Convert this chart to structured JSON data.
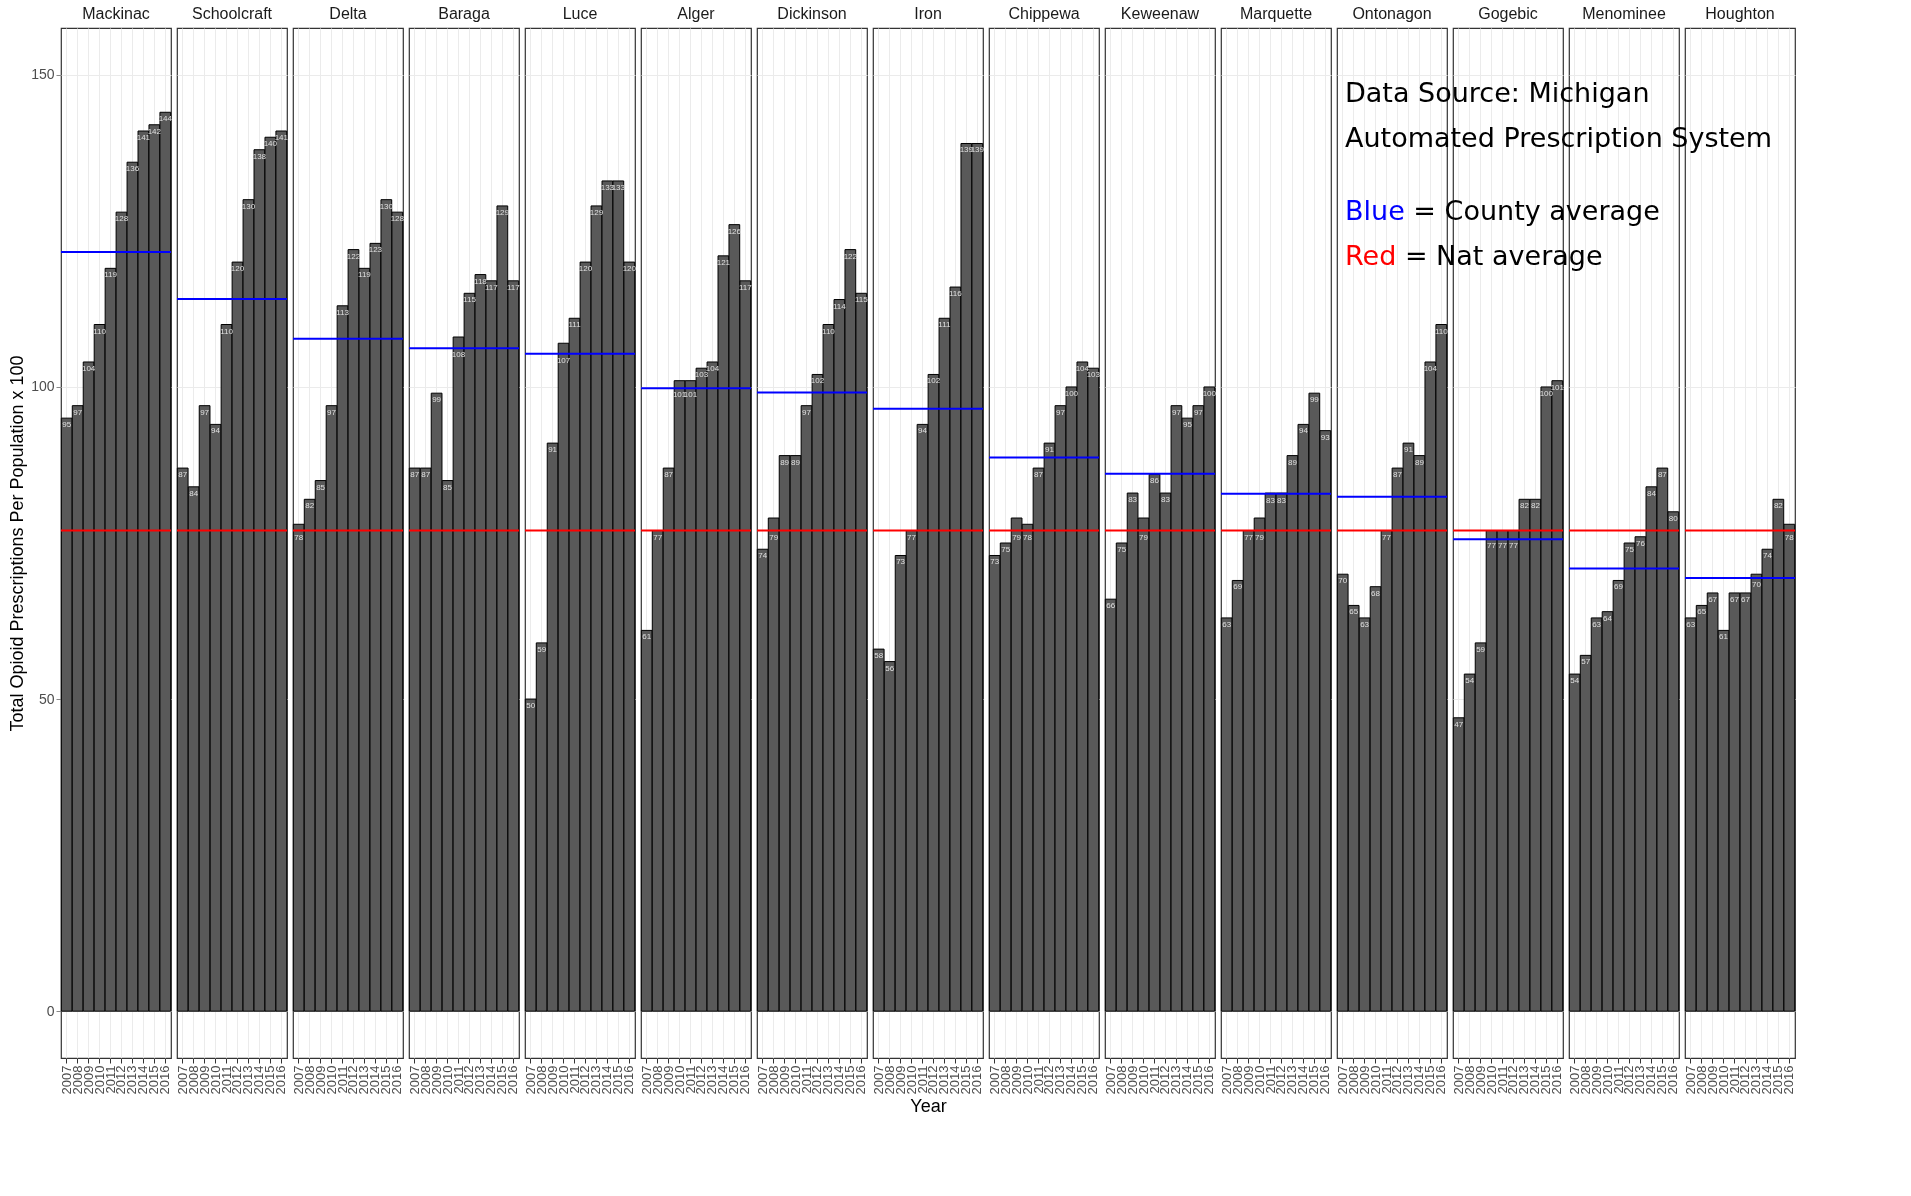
{
  "chart_data": [
    {
      "type": "bar",
      "title": "Mackinac",
      "ylabel": "Total Opioid Prescriptions Per Population x 100",
      "categories": [
        "2007",
        "2008",
        "2009",
        "2010",
        "2011",
        "2012",
        "2013",
        "2014",
        "2015",
        "2016"
      ],
      "values": [
        95,
        97,
        104,
        110,
        119,
        128,
        136,
        141,
        142,
        144
      ],
      "color": "#595959",
      "ylim": [
        -7.5,
        157.5
      ],
      "yticks": [
        0,
        50,
        100,
        150
      ],
      "grid": true,
      "data_labels": true,
      "ref_lines": [
        {
          "axis": "y",
          "value": 121.6,
          "color": "#0000ff"
        },
        {
          "axis": "y",
          "value": 77,
          "color": "#ff0000"
        }
      ]
    },
    {
      "type": "bar",
      "title": "Schoolcraft",
      "categories": [
        "2007",
        "2008",
        "2009",
        "2010",
        "2011",
        "2012",
        "2013",
        "2014",
        "2015",
        "2016"
      ],
      "values": [
        87,
        84,
        97,
        94,
        110,
        120,
        130,
        138,
        140,
        141
      ],
      "color": "#595959",
      "ylim": [
        -7.5,
        157.5
      ],
      "yticks": [
        0,
        50,
        100,
        150
      ],
      "grid": true,
      "data_labels": true,
      "tick_labels": "x",
      "ref_lines": [
        {
          "axis": "y",
          "value": 114.1,
          "color": "#0000ff"
        },
        {
          "axis": "y",
          "value": 77,
          "color": "#ff0000"
        }
      ]
    },
    {
      "type": "bar",
      "title": "Delta",
      "categories": [
        "2007",
        "2008",
        "2009",
        "2010",
        "2011",
        "2012",
        "2013",
        "2014",
        "2015",
        "2016"
      ],
      "values": [
        78,
        82,
        85,
        97,
        113,
        122,
        119,
        123,
        130,
        128
      ],
      "color": "#595959",
      "ylim": [
        -7.5,
        157.5
      ],
      "yticks": [
        0,
        50,
        100,
        150
      ],
      "grid": true,
      "data_labels": true,
      "tick_labels": "x",
      "ref_lines": [
        {
          "axis": "y",
          "value": 107.7,
          "color": "#0000ff"
        },
        {
          "axis": "y",
          "value": 77,
          "color": "#ff0000"
        }
      ]
    },
    {
      "type": "bar",
      "title": "Baraga",
      "categories": [
        "2007",
        "2008",
        "2009",
        "2010",
        "2011",
        "2012",
        "2013",
        "2014",
        "2015",
        "2016"
      ],
      "values": [
        87,
        87,
        99,
        85,
        108,
        115,
        118,
        117,
        129,
        117
      ],
      "color": "#595959",
      "ylim": [
        -7.5,
        157.5
      ],
      "yticks": [
        0,
        50,
        100,
        150
      ],
      "grid": true,
      "data_labels": true,
      "tick_labels": "x",
      "ref_lines": [
        {
          "axis": "y",
          "value": 106.2,
          "color": "#0000ff"
        },
        {
          "axis": "y",
          "value": 77,
          "color": "#ff0000"
        }
      ]
    },
    {
      "type": "bar",
      "title": "Luce",
      "categories": [
        "2007",
        "2008",
        "2009",
        "2010",
        "2011",
        "2012",
        "2013",
        "2014",
        "2015",
        "2016"
      ],
      "values": [
        50,
        59,
        91,
        107,
        111,
        120,
        129,
        133,
        133,
        120
      ],
      "color": "#595959",
      "ylim": [
        -7.5,
        157.5
      ],
      "yticks": [
        0,
        50,
        100,
        150
      ],
      "grid": true,
      "data_labels": true,
      "tick_labels": "x",
      "ref_lines": [
        {
          "axis": "y",
          "value": 105.3,
          "color": "#0000ff"
        },
        {
          "axis": "y",
          "value": 77,
          "color": "#ff0000"
        }
      ]
    },
    {
      "type": "bar",
      "title": "Alger",
      "categories": [
        "2007",
        "2008",
        "2009",
        "2010",
        "2011",
        "2012",
        "2013",
        "2014",
        "2015",
        "2016"
      ],
      "values": [
        61,
        77,
        87,
        101,
        101,
        103,
        104,
        121,
        126,
        117
      ],
      "color": "#595959",
      "ylim": [
        -7.5,
        157.5
      ],
      "yticks": [
        0,
        50,
        100,
        150
      ],
      "grid": true,
      "data_labels": true,
      "tick_labels": "x",
      "ref_lines": [
        {
          "axis": "y",
          "value": 99.8,
          "color": "#0000ff"
        },
        {
          "axis": "y",
          "value": 77,
          "color": "#ff0000"
        }
      ]
    },
    {
      "type": "bar",
      "title": "Dickinson",
      "categories": [
        "2007",
        "2008",
        "2009",
        "2010",
        "2011",
        "2012",
        "2013",
        "2014",
        "2015",
        "2016"
      ],
      "values": [
        74,
        79,
        89,
        89,
        97,
        102,
        110,
        114,
        122,
        115
      ],
      "color": "#595959",
      "ylim": [
        -7.5,
        157.5
      ],
      "yticks": [
        0,
        50,
        100,
        150
      ],
      "grid": true,
      "data_labels": true,
      "tick_labels": "x",
      "ref_lines": [
        {
          "axis": "y",
          "value": 99.1,
          "color": "#0000ff"
        },
        {
          "axis": "y",
          "value": 77,
          "color": "#ff0000"
        }
      ]
    },
    {
      "type": "bar",
      "title": "Iron",
      "xlabel": "Year",
      "categories": [
        "2007",
        "2008",
        "2009",
        "2010",
        "2011",
        "2012",
        "2013",
        "2014",
        "2015",
        "2016"
      ],
      "values": [
        58,
        56,
        73,
        77,
        94,
        102,
        111,
        116,
        139,
        139
      ],
      "color": "#595959",
      "ylim": [
        -7.5,
        157.5
      ],
      "yticks": [
        0,
        50,
        100,
        150
      ],
      "grid": true,
      "data_labels": true,
      "tick_labels": "x",
      "ref_lines": [
        {
          "axis": "y",
          "value": 96.5,
          "color": "#0000ff"
        },
        {
          "axis": "y",
          "value": 77,
          "color": "#ff0000"
        }
      ]
    },
    {
      "type": "bar",
      "title": "Chippewa",
      "categories": [
        "2007",
        "2008",
        "2009",
        "2010",
        "2011",
        "2012",
        "2013",
        "2014",
        "2015",
        "2016"
      ],
      "values": [
        73,
        75,
        79,
        78,
        87,
        91,
        97,
        100,
        104,
        103
      ],
      "color": "#595959",
      "ylim": [
        -7.5,
        157.5
      ],
      "yticks": [
        0,
        50,
        100,
        150
      ],
      "grid": true,
      "data_labels": true,
      "tick_labels": "x",
      "ref_lines": [
        {
          "axis": "y",
          "value": 88.7,
          "color": "#0000ff"
        },
        {
          "axis": "y",
          "value": 77,
          "color": "#ff0000"
        }
      ]
    },
    {
      "type": "bar",
      "title": "Keweenaw",
      "categories": [
        "2007",
        "2008",
        "2009",
        "2010",
        "2011",
        "2012",
        "2013",
        "2014",
        "2015",
        "2016"
      ],
      "values": [
        66,
        75,
        83,
        79,
        86,
        83,
        97,
        95,
        97,
        100
      ],
      "color": "#595959",
      "ylim": [
        -7.5,
        157.5
      ],
      "yticks": [
        0,
        50,
        100,
        150
      ],
      "grid": true,
      "data_labels": true,
      "tick_labels": "x",
      "ref_lines": [
        {
          "axis": "y",
          "value": 86.1,
          "color": "#0000ff"
        },
        {
          "axis": "y",
          "value": 77,
          "color": "#ff0000"
        }
      ]
    },
    {
      "type": "bar",
      "title": "Marquette",
      "annotations": [
        "Data Source: Michigan Automated Prescription System",
        "Blue = County average",
        "Red = Nat average"
      ],
      "categories": [
        "2007",
        "2008",
        "2009",
        "2010",
        "2011",
        "2012",
        "2013",
        "2014",
        "2015",
        "2016"
      ],
      "values": [
        63,
        69,
        77,
        79,
        83,
        83,
        89,
        94,
        99,
        93
      ],
      "color": "#595959",
      "ylim": [
        -7.5,
        157.5
      ],
      "yticks": [
        0,
        50,
        100,
        150
      ],
      "grid": true,
      "data_labels": true,
      "tick_labels": "x",
      "ref_lines": [
        {
          "axis": "y",
          "value": 82.9,
          "color": "#0000ff"
        },
        {
          "axis": "y",
          "value": 77,
          "color": "#ff0000"
        }
      ]
    },
    {
      "type": "bar",
      "title": "Ontonagon",
      "categories": [
        "2007",
        "2008",
        "2009",
        "2010",
        "2011",
        "2012",
        "2013",
        "2014",
        "2015",
        "2016"
      ],
      "values": [
        70,
        65,
        63,
        68,
        77,
        87,
        91,
        89,
        104,
        110
      ],
      "color": "#595959",
      "ylim": [
        -7.5,
        157.5
      ],
      "yticks": [
        0,
        50,
        100,
        150
      ],
      "grid": true,
      "data_labels": true,
      "tick_labels": "x",
      "ref_lines": [
        {
          "axis": "y",
          "value": 82.4,
          "color": "#0000ff"
        },
        {
          "axis": "y",
          "value": 77,
          "color": "#ff0000"
        }
      ]
    },
    {
      "type": "bar",
      "title": "Gogebic",
      "categories": [
        "2007",
        "2008",
        "2009",
        "2010",
        "2011",
        "2012",
        "2013",
        "2014",
        "2015",
        "2016"
      ],
      "values": [
        47,
        54,
        59,
        77,
        77,
        77,
        82,
        82,
        100,
        101
      ],
      "color": "#595959",
      "ylim": [
        -7.5,
        157.5
      ],
      "yticks": [
        0,
        50,
        100,
        150
      ],
      "grid": true,
      "data_labels": true,
      "tick_labels": "x",
      "ref_lines": [
        {
          "axis": "y",
          "value": 75.6,
          "color": "#0000ff"
        },
        {
          "axis": "y",
          "value": 77,
          "color": "#ff0000"
        }
      ]
    },
    {
      "type": "bar",
      "title": "Menominee",
      "categories": [
        "2007",
        "2008",
        "2009",
        "2010",
        "2011",
        "2012",
        "2013",
        "2014",
        "2015",
        "2016"
      ],
      "values": [
        54,
        57,
        63,
        64,
        69,
        75,
        76,
        84,
        87,
        80
      ],
      "color": "#595959",
      "ylim": [
        -7.5,
        157.5
      ],
      "yticks": [
        0,
        50,
        100,
        150
      ],
      "grid": true,
      "data_labels": true,
      "tick_labels": "x",
      "ref_lines": [
        {
          "axis": "y",
          "value": 70.9,
          "color": "#0000ff"
        },
        {
          "axis": "y",
          "value": 77,
          "color": "#ff0000"
        }
      ]
    },
    {
      "type": "bar",
      "title": "Houghton",
      "categories": [
        "2007",
        "2008",
        "2009",
        "2010",
        "2011",
        "2012",
        "2013",
        "2014",
        "2015",
        "2016"
      ],
      "values": [
        63,
        65,
        67,
        61,
        67,
        67,
        70,
        74,
        82,
        78
      ],
      "color": "#595959",
      "ylim": [
        -7.5,
        157.5
      ],
      "yticks": [
        0,
        50,
        100,
        150
      ],
      "grid": true,
      "data_labels": true,
      "tick_labels": "x",
      "ref_lines": [
        {
          "axis": "y",
          "value": 69.4,
          "color": "#0000ff"
        },
        {
          "axis": "y",
          "value": 77,
          "color": "#ff0000"
        }
      ]
    }
  ]
}
